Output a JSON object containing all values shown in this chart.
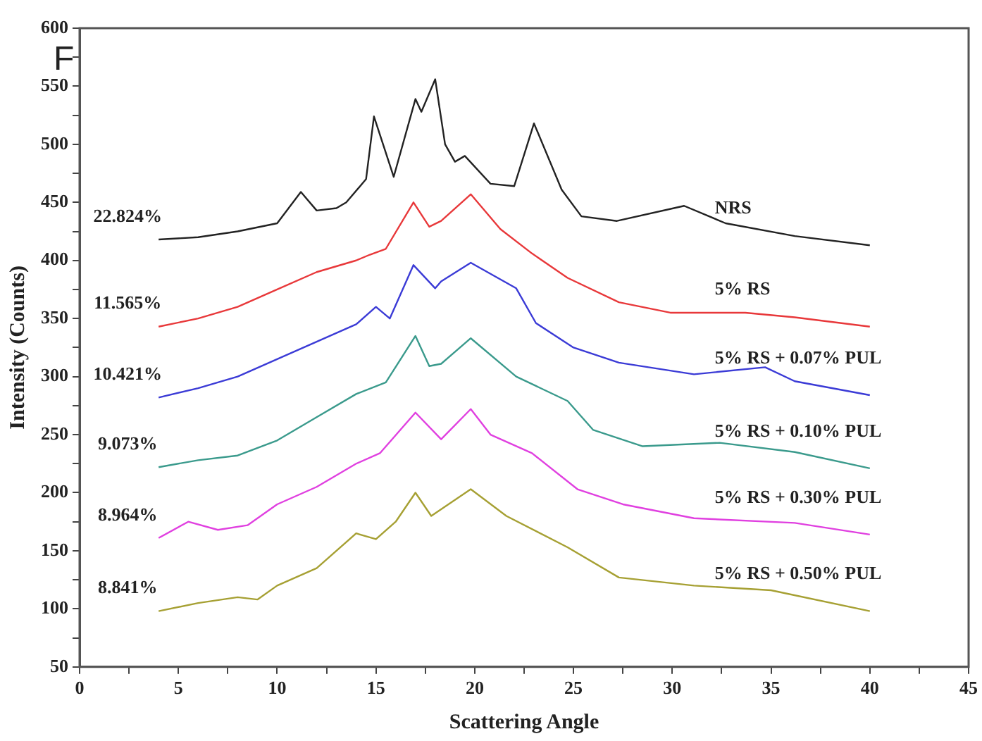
{
  "chart_data": {
    "type": "line",
    "xlabel": "Scattering Angle",
    "ylabel": "Intensity (Counts)",
    "xlim": [
      0,
      45
    ],
    "ylim": [
      50,
      600
    ],
    "xticks": [
      0,
      {
        "value": 2.5,
        "label": null
      },
      5,
      {
        "value": 7.5,
        "label": null
      },
      10,
      {
        "value": 12.5,
        "label": null
      },
      15,
      {
        "value": 17.5,
        "label": null
      },
      20,
      {
        "value": 22.5,
        "label": null
      },
      25,
      {
        "value": 27.5,
        "label": null
      },
      30,
      {
        "value": 32.5,
        "label": null
      },
      35,
      {
        "value": 37.5,
        "label": null
      },
      40,
      {
        "value": 42.5,
        "label": null
      },
      45
    ],
    "yticks": [
      50,
      {
        "value": 75,
        "label": null
      },
      100,
      {
        "value": 125,
        "label": null
      },
      150,
      {
        "value": 175,
        "label": null
      },
      200,
      {
        "value": 225,
        "label": null
      },
      250,
      {
        "value": 275,
        "label": null
      },
      300,
      {
        "value": 325,
        "label": null
      },
      350,
      {
        "value": 375,
        "label": null
      },
      400,
      {
        "value": 425,
        "label": null
      },
      450,
      {
        "value": 475,
        "label": null
      },
      500,
      {
        "value": 525,
        "label": null
      },
      550,
      {
        "value": 575,
        "label": null
      },
      600
    ],
    "grid": false,
    "legend": false,
    "marker": "none",
    "line_style": "solid",
    "annotations": [
      "F",
      "22.824%",
      "11.565%",
      "10.421%",
      "9.073%",
      "8.964%",
      "8.841%"
    ],
    "series": [
      {
        "name": "NRS",
        "color": "#222222",
        "x": [
          4,
          6,
          8,
          10,
          11.2,
          12,
          13,
          13.5,
          14.5,
          14.9,
          15.9,
          17,
          17.3,
          18,
          18.5,
          19,
          19.5,
          20.8,
          22,
          23,
          24.4,
          25.4,
          27.2,
          30.6,
          32.7,
          36.2,
          40
        ],
        "values": [
          418,
          420,
          425,
          432,
          459,
          443,
          445,
          450,
          470,
          524,
          472,
          539,
          528,
          556,
          500,
          485,
          490,
          466,
          464,
          518,
          461,
          438,
          434,
          447,
          432,
          421,
          413
        ]
      },
      {
        "name": "5% RS",
        "color": "#e8383a",
        "x": [
          4,
          6,
          8,
          10,
          12,
          14,
          14.7,
          15.5,
          16.9,
          17.7,
          18.3,
          19.8,
          21.3,
          22.9,
          24.7,
          27.3,
          29.9,
          33.7,
          36.2,
          40
        ],
        "values": [
          343,
          350,
          360,
          375,
          390,
          400,
          405,
          410,
          450,
          429,
          434,
          457,
          427,
          406,
          385,
          364,
          355,
          355,
          351,
          343
        ]
      },
      {
        "name": "5% RS + 0.07% PUL",
        "color": "#3b3bd6",
        "x": [
          4,
          6,
          8,
          10,
          12,
          14,
          15,
          15.7,
          16.9,
          18,
          18.3,
          19.8,
          22.1,
          23.1,
          25,
          27.3,
          31.1,
          34.7,
          36.2,
          40
        ],
        "values": [
          282,
          290,
          300,
          315,
          330,
          345,
          360,
          350,
          396,
          376,
          382,
          398,
          376,
          346,
          325,
          312,
          302,
          308,
          296,
          284
        ]
      },
      {
        "name": "5% RS + 0.10% PUL",
        "color": "#3a9a8c",
        "x": [
          4,
          6,
          8,
          10,
          12,
          14,
          15.5,
          17,
          17.7,
          18.3,
          19.8,
          22.1,
          24.7,
          26,
          28.5,
          32.4,
          36.2,
          40
        ],
        "values": [
          222,
          228,
          232,
          245,
          265,
          285,
          295,
          335,
          309,
          311,
          333,
          300,
          279,
          254,
          240,
          243,
          235,
          221
        ]
      },
      {
        "name": "5% RS + 0.30% PUL",
        "color": "#e040e0",
        "x": [
          4,
          5.5,
          7,
          8.5,
          10,
          12,
          14,
          15.2,
          17,
          18.3,
          19.8,
          20.8,
          22.9,
          25.2,
          27.5,
          31.1,
          36.2,
          40
        ],
        "values": [
          161,
          175,
          168,
          172,
          190,
          205,
          225,
          234,
          269,
          246,
          272,
          250,
          234,
          203,
          190,
          178,
          174,
          164
        ]
      },
      {
        "name": "5% RS + 0.50% PUL",
        "color": "#a6a033",
        "x": [
          4,
          6,
          8,
          9,
          10,
          12,
          14,
          15,
          16,
          17,
          17.8,
          19.8,
          21.6,
          24.7,
          27.3,
          31.1,
          35,
          40
        ],
        "values": [
          98,
          105,
          110,
          108,
          120,
          135,
          165,
          160,
          175,
          200,
          180,
          203,
          180,
          153,
          127,
          120,
          116,
          98
        ]
      }
    ]
  }
}
